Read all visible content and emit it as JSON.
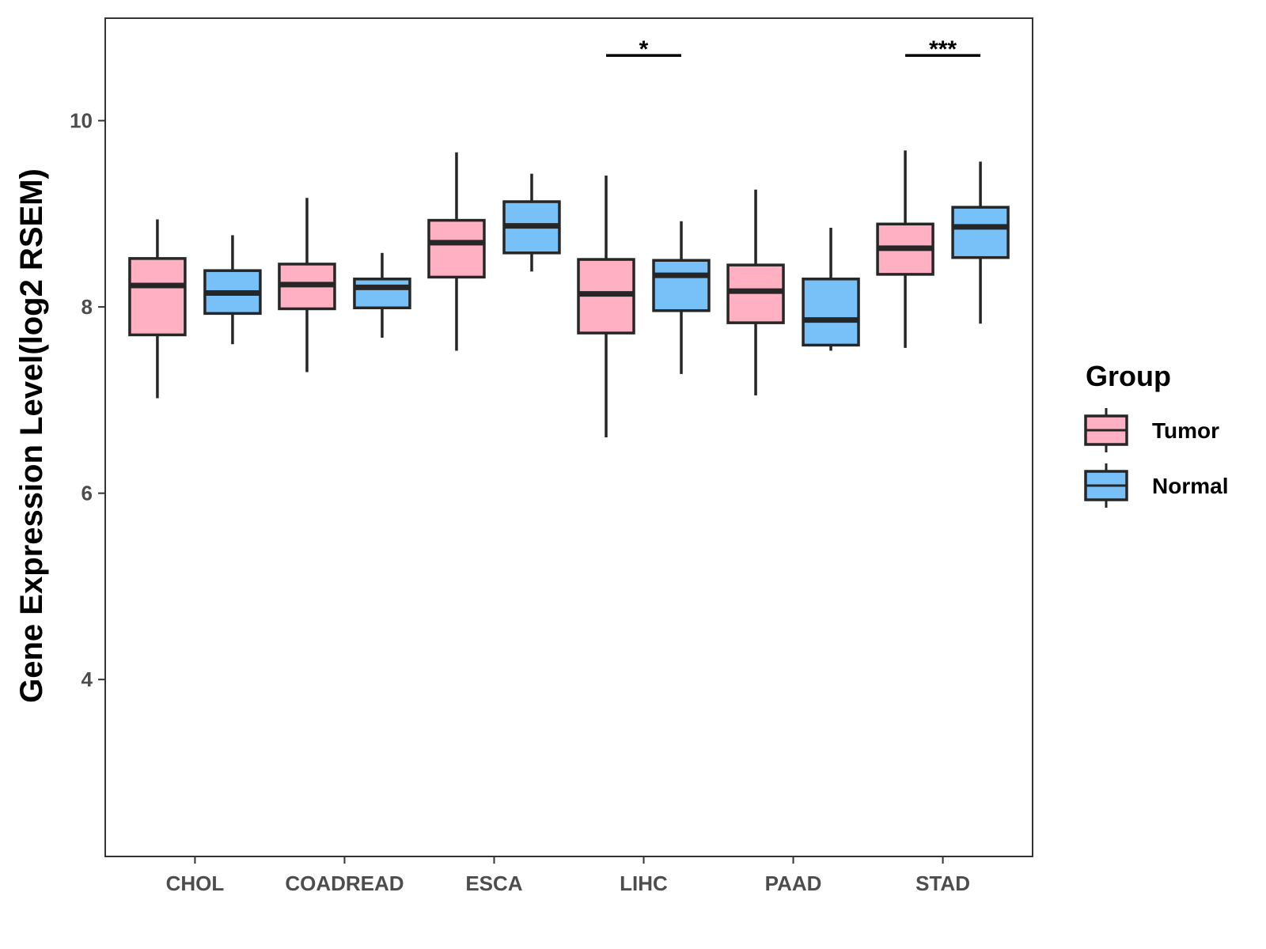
{
  "chart_data": {
    "type": "boxplot",
    "title": "",
    "xlabel": "",
    "ylabel": "Gene Expression Level(log2 RSEM)",
    "ylim": [
      2.1,
      11.1
    ],
    "yticks": [
      4,
      6,
      8,
      10
    ],
    "grid": false,
    "categories": [
      "CHOL",
      "COADREAD",
      "ESCA",
      "LIHC",
      "PAAD",
      "STAD"
    ],
    "series": [
      {
        "name": "Tumor",
        "color": "#FFB0C2",
        "boxes": [
          {
            "min": 7.02,
            "q1": 7.7,
            "median": 8.23,
            "q3": 8.52,
            "max": 8.94
          },
          {
            "min": 7.3,
            "q1": 7.98,
            "median": 8.24,
            "q3": 8.46,
            "max": 9.17
          },
          {
            "min": 7.53,
            "q1": 8.32,
            "median": 8.69,
            "q3": 8.93,
            "max": 9.66
          },
          {
            "min": 6.6,
            "q1": 7.72,
            "median": 8.14,
            "q3": 8.51,
            "max": 9.41
          },
          {
            "min": 7.05,
            "q1": 7.83,
            "median": 8.17,
            "q3": 8.45,
            "max": 9.26
          },
          {
            "min": 7.56,
            "q1": 8.35,
            "median": 8.63,
            "q3": 8.89,
            "max": 9.68
          }
        ]
      },
      {
        "name": "Normal",
        "color": "#78C1F8",
        "boxes": [
          {
            "min": 7.6,
            "q1": 7.93,
            "median": 8.15,
            "q3": 8.39,
            "max": 8.77
          },
          {
            "min": 7.67,
            "q1": 7.99,
            "median": 8.21,
            "q3": 8.3,
            "max": 8.58
          },
          {
            "min": 8.38,
            "q1": 8.58,
            "median": 8.87,
            "q3": 9.13,
            "max": 9.43
          },
          {
            "min": 7.28,
            "q1": 7.96,
            "median": 8.34,
            "q3": 8.5,
            "max": 8.92
          },
          {
            "min": 7.53,
            "q1": 7.59,
            "median": 7.86,
            "q3": 8.3,
            "max": 8.85
          },
          {
            "min": 7.82,
            "q1": 8.53,
            "median": 8.86,
            "q3": 9.07,
            "max": 9.56
          }
        ]
      }
    ],
    "annotations": [
      {
        "category": "LIHC",
        "label": "*",
        "y": 10.7
      },
      {
        "category": "STAD",
        "label": "***",
        "y": 10.7
      }
    ],
    "legend": {
      "title": "Group",
      "position": "right"
    }
  }
}
